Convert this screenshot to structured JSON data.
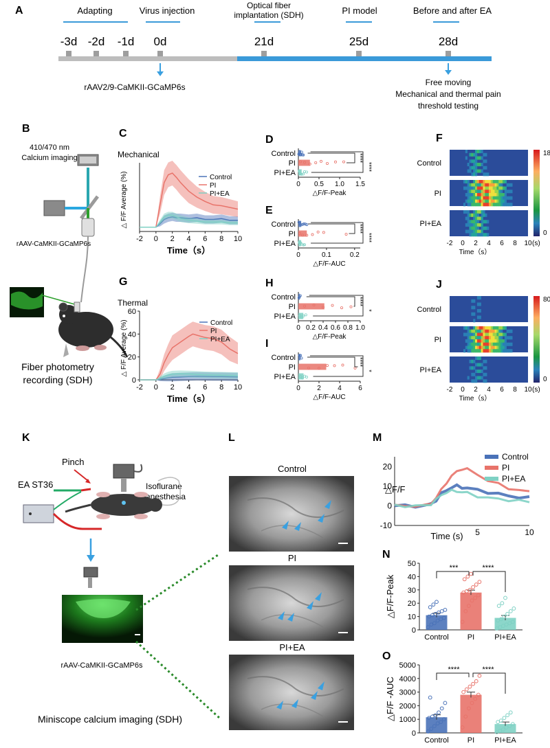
{
  "panel_letters": [
    "A",
    "B",
    "C",
    "D",
    "E",
    "F",
    "G",
    "H",
    "I",
    "J",
    "K",
    "L",
    "M",
    "N",
    "O"
  ],
  "colors": {
    "control": "#4a72b8",
    "pi": "#e8736a",
    "piea": "#7fd1c4",
    "timeline_gray": "#bdbdbd",
    "timeline_blue": "#3a9ad9",
    "label_blue": "#3aa0e0",
    "bracket": "#333333"
  },
  "timeline": {
    "phases": [
      "Adapting",
      "Virus injection",
      "Optical fiber\nimplantation (SDH)",
      "PI model",
      "Before and after EA"
    ],
    "days": [
      "-3d",
      "-2d",
      "-1d",
      "0d",
      "21d",
      "25d",
      "28d"
    ],
    "virus_label": "rAAV2/9-CaMKII-GCaMP6s",
    "test_label_1": "Free moving",
    "test_label_2": "Mechanical and thermal pain",
    "test_label_3": "threshold testing"
  },
  "schematic_b": {
    "imaging_label_1": "410/470 nm",
    "imaging_label_2": "Calcium imaging",
    "virus_label": "rAAV-CaMKII-GCaMP6s",
    "caption_1": "Fiber photometry",
    "caption_2": "recording (SDH)"
  },
  "schematic_k": {
    "pinch": "Pinch",
    "ea": "EA ST36",
    "iso_1": "Isoflurane",
    "iso_2": "anesthesia",
    "virus_label": "rAAV-CaMKII-GCaMP6s",
    "caption": "Miniscope calcium imaging (SDH)"
  },
  "groups": [
    "Control",
    "PI",
    "PI+EA"
  ],
  "time_label": "Time（s）",
  "time_label_m": "Time (s)",
  "heatmap_unit": "(s)",
  "chart_data": [
    {
      "id": "C",
      "type": "line",
      "title": "Mechanical",
      "ylabel": "△ F/F Average (%)",
      "xlabel": "Time（s）",
      "x": [
        -2,
        -1,
        0,
        0.5,
        1,
        1.5,
        2,
        2.5,
        3,
        4,
        5,
        6,
        7,
        8,
        9,
        10
      ],
      "xticks": [
        -2,
        0,
        2,
        4,
        6,
        8,
        10
      ],
      "yticks": [],
      "xlim": [
        -2,
        10
      ],
      "ylim": [
        -0.5,
        7.5
      ],
      "series": [
        {
          "name": "Control",
          "values": [
            0,
            0,
            0,
            0.4,
            0.9,
            1.1,
            1.2,
            1.1,
            1.1,
            1.0,
            1.1,
            0.9,
            0.9,
            1.0,
            0.8,
            0.8
          ]
        },
        {
          "name": "PI",
          "values": [
            0,
            0,
            0,
            2.6,
            5.2,
            6.1,
            6.3,
            5.8,
            5.2,
            4.2,
            3.5,
            3.0,
            2.6,
            2.5,
            2.3,
            2.1
          ]
        },
        {
          "name": "PI+EA",
          "values": [
            0,
            0,
            0,
            0.6,
            1.2,
            1.4,
            1.4,
            1.2,
            1.0,
            0.8,
            0.7,
            0.6,
            0.6,
            0.6,
            0.5,
            0.5
          ]
        }
      ]
    },
    {
      "id": "D",
      "type": "bar",
      "xlabel": "△F/F-Peak",
      "categories": [
        "Control",
        "PI",
        "PI+EA"
      ],
      "values": [
        0.06,
        0.28,
        0.08
      ],
      "xticks": [
        0,
        0.5,
        1.0,
        1.5
      ],
      "xtick_labels": [
        "0",
        "0.5",
        "1.0",
        "1.5"
      ],
      "xlim": [
        0,
        1.5
      ],
      "points": [
        [
          0.01,
          0.03,
          0.05,
          0.08,
          0.1,
          0.12,
          0.02,
          0.06
        ],
        [
          0.05,
          0.15,
          0.28,
          0.42,
          0.55,
          0.7,
          0.9,
          1.1
        ],
        [
          0.02,
          0.05,
          0.08,
          0.12,
          0.15,
          0.2
        ]
      ],
      "significance": [
        "****",
        "****"
      ]
    },
    {
      "id": "E",
      "type": "bar",
      "xlabel": "△F/F-AUC",
      "categories": [
        "Control",
        "PI",
        "PI+EA"
      ],
      "values": [
        0.01,
        0.03,
        0.01
      ],
      "xticks": [
        0,
        0.1,
        0.2
      ],
      "xtick_labels": [
        "0",
        "0.1",
        "0.2"
      ],
      "xlim": [
        0,
        0.22
      ],
      "points": [
        [
          0.002,
          0.005,
          0.01,
          0.015,
          0.02,
          0.025,
          0.03
        ],
        [
          0.005,
          0.015,
          0.03,
          0.05,
          0.07,
          0.09,
          0.17
        ],
        [
          0.003,
          0.008,
          0.012,
          0.018,
          0.022
        ]
      ],
      "significance": [
        "****",
        "****"
      ]
    },
    {
      "id": "F",
      "type": "heatmap",
      "groups": [
        "Control",
        "PI",
        "PI+EA"
      ],
      "xticks": [
        -2,
        0,
        2,
        4,
        6,
        8,
        10
      ],
      "colorbar_ticks": [
        "18",
        "0"
      ],
      "xlabel": "Time（s）"
    },
    {
      "id": "G",
      "type": "line",
      "title": "Thermal",
      "ylabel": "△ F/F Average (%)",
      "xlabel": "Time（s）",
      "x": [
        -2,
        -1,
        0,
        0.5,
        1,
        1.5,
        2,
        3,
        4,
        4.5,
        5,
        6,
        7,
        8,
        9,
        10
      ],
      "xticks": [
        -2,
        0,
        2,
        4,
        6,
        8,
        10
      ],
      "yticks": [
        0,
        20,
        40,
        60
      ],
      "xlim": [
        -2,
        10
      ],
      "ylim": [
        0,
        60
      ],
      "series": [
        {
          "name": "Control",
          "values": [
            0,
            0,
            0,
            0.5,
            1.2,
            1.8,
            2.2,
            2.6,
            2.8,
            3.0,
            3.1,
            3.0,
            2.9,
            2.8,
            2.7,
            2.6
          ]
        },
        {
          "name": "PI",
          "values": [
            0,
            0,
            0,
            5,
            15,
            22,
            28,
            33,
            38,
            40,
            39,
            37,
            36,
            33,
            27,
            23
          ]
        },
        {
          "name": "PI+EA",
          "values": [
            0,
            0,
            0,
            1.5,
            3,
            4.2,
            5,
            5.3,
            5.1,
            4.9,
            4.7,
            4.4,
            4.2,
            4.0,
            3.9,
            3.8
          ]
        }
      ]
    },
    {
      "id": "H",
      "type": "bar",
      "xlabel": "△F/F-Peak",
      "categories": [
        "Control",
        "PI",
        "PI+EA"
      ],
      "values": [
        0.02,
        0.42,
        0.08
      ],
      "xticks": [
        0,
        0.2,
        0.4,
        0.6,
        0.8,
        1.0
      ],
      "xtick_labels": [
        "0",
        "0.2",
        "0.4",
        "0.6",
        "0.8",
        "1.0"
      ],
      "xlim": [
        0,
        1.0
      ],
      "points": [
        [
          0.01,
          0.02,
          0.03
        ],
        [
          0.1,
          0.25,
          0.4,
          0.55,
          0.7,
          0.85
        ],
        [
          0.02,
          0.05,
          0.08,
          0.12
        ]
      ],
      "significance": [
        "****",
        "*"
      ]
    },
    {
      "id": "I",
      "type": "bar",
      "xlabel": "△F/F-AUC",
      "categories": [
        "Control",
        "PI",
        "PI+EA"
      ],
      "values": [
        0.2,
        2.7,
        0.5
      ],
      "xticks": [
        0,
        2,
        4,
        6
      ],
      "xtick_labels": [
        "0",
        "2",
        "4",
        "6"
      ],
      "xlim": [
        0,
        6
      ],
      "points": [
        [
          0.1,
          0.2,
          0.3
        ],
        [
          1.0,
          2.0,
          2.8,
          3.5,
          4.3,
          5.5
        ],
        [
          0.2,
          0.4,
          0.6,
          0.8
        ]
      ],
      "significance": [
        "****",
        "*"
      ]
    },
    {
      "id": "J",
      "type": "heatmap",
      "groups": [
        "Control",
        "PI",
        "PI+EA"
      ],
      "xticks": [
        -2,
        0,
        2,
        4,
        6,
        8,
        10
      ],
      "colorbar_ticks": [
        "80",
        "0"
      ],
      "xlabel": "Time（s）"
    },
    {
      "id": "M",
      "type": "line",
      "ylabel": "△F/F",
      "xlabel": "Time (s)",
      "x": [
        -2,
        -1,
        0,
        0.5,
        1,
        1.5,
        2,
        2.5,
        3,
        3.5,
        4,
        5,
        6,
        7,
        8,
        9,
        10
      ],
      "xticks": [
        5,
        10
      ],
      "yticks": [
        -10,
        0,
        10,
        20
      ],
      "xlim": [
        -3,
        10
      ],
      "ylim": [
        -10,
        25
      ],
      "series": [
        {
          "name": "Control",
          "values": [
            0,
            0,
            0,
            1,
            3,
            6,
            8,
            9.5,
            10,
            9.5,
            9,
            8,
            7,
            6,
            5,
            4.5,
            4
          ]
        },
        {
          "name": "PI",
          "values": [
            0,
            0,
            0,
            1.5,
            4,
            8,
            12,
            15,
            17.5,
            19,
            18.5,
            16,
            13,
            11,
            9,
            8,
            7
          ]
        },
        {
          "name": "PI+EA",
          "values": [
            0,
            0,
            0,
            1,
            3,
            5.5,
            7,
            7.5,
            7.5,
            7,
            6.5,
            5,
            4,
            3.5,
            3,
            2.5,
            2
          ]
        }
      ]
    },
    {
      "id": "N",
      "type": "bar",
      "ylabel": "△F/F-Peak",
      "categories": [
        "Control",
        "PI",
        "PI+EA"
      ],
      "values": [
        11,
        28,
        9
      ],
      "errors": [
        1.5,
        1.8,
        1.8
      ],
      "yticks": [
        0,
        10,
        20,
        30,
        40,
        50
      ],
      "ylim": [
        0,
        50
      ],
      "points": [
        [
          2,
          4,
          5,
          7,
          8,
          9,
          10,
          11,
          12,
          13,
          14,
          15,
          17,
          19,
          21
        ],
        [
          6,
          14,
          18,
          22,
          24,
          26,
          28,
          29,
          30,
          32,
          34,
          36,
          38,
          40,
          42
        ],
        [
          1,
          2,
          3,
          4,
          5,
          6,
          7,
          8,
          10,
          12,
          14,
          16,
          18,
          20,
          24
        ]
      ],
      "significance": [
        "***",
        "****"
      ]
    },
    {
      "id": "O",
      "type": "bar",
      "ylabel": "△F/F -AUC",
      "categories": [
        "Control",
        "PI",
        "PI+EA"
      ],
      "values": [
        1150,
        2800,
        650
      ],
      "errors": [
        180,
        200,
        150
      ],
      "yticks": [
        0,
        1000,
        2000,
        3000,
        4000,
        5000
      ],
      "ylim": [
        0,
        5000
      ],
      "points": [
        [
          100,
          300,
          500,
          700,
          800,
          1000,
          1100,
          1200,
          1300,
          1500,
          1800,
          2200,
          2600
        ],
        [
          400,
          1200,
          1800,
          2200,
          2500,
          2800,
          3000,
          3200,
          3400,
          3600,
          3800,
          4200
        ],
        [
          50,
          150,
          250,
          400,
          500,
          650,
          800,
          900,
          1100,
          1300,
          1500
        ]
      ],
      "significance": [
        "****",
        "****"
      ]
    }
  ],
  "miniscope": {
    "labels": [
      "Control",
      "PI",
      "PI+EA"
    ]
  }
}
